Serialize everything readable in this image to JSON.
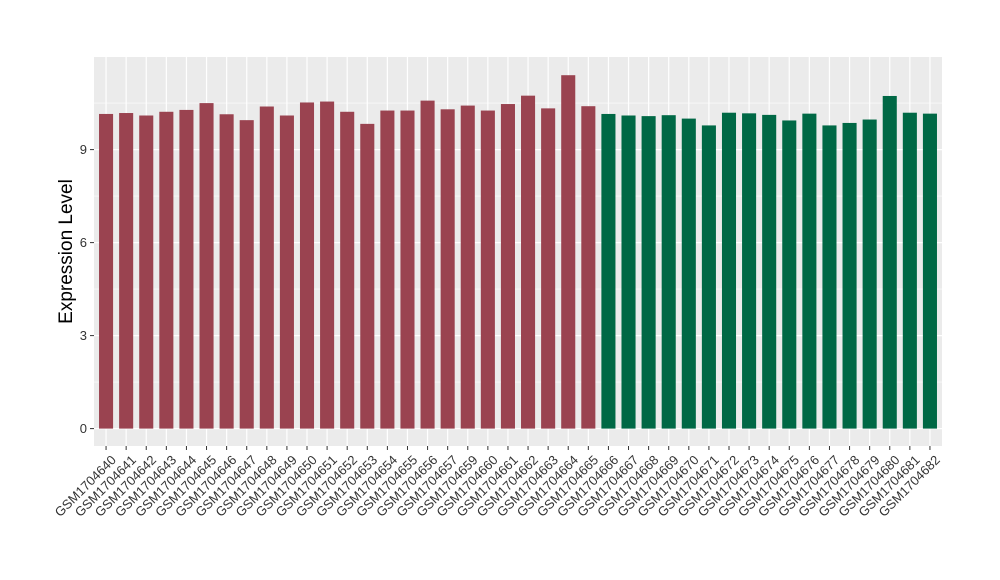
{
  "chart_data": {
    "type": "bar",
    "title": "",
    "xlabel": "",
    "ylabel": "Expression Level",
    "ylim": [
      0,
      12.2
    ],
    "yticks": [
      0,
      3,
      6,
      9
    ],
    "grid": true,
    "legend": "none",
    "colors": {
      "group1": "#9a4350",
      "group2": "#006845",
      "panel_bg": "#ebebeb",
      "grid": "#ffffff"
    },
    "categories": [
      "GSM1704640",
      "GSM1704641",
      "GSM1704642",
      "GSM1704643",
      "GSM1704644",
      "GSM1704645",
      "GSM1704646",
      "GSM1704647",
      "GSM1704648",
      "GSM1704649",
      "GSM1704650",
      "GSM1704651",
      "GSM1704652",
      "GSM1704653",
      "GSM1704654",
      "GSM1704655",
      "GSM1704656",
      "GSM1704657",
      "GSM1704659",
      "GSM1704660",
      "GSM1704661",
      "GSM1704662",
      "GSM1704663",
      "GSM1704664",
      "GSM1704665",
      "GSM1704666",
      "GSM1704667",
      "GSM1704668",
      "GSM1704669",
      "GSM1704670",
      "GSM1704671",
      "GSM1704672",
      "GSM1704673",
      "GSM1704674",
      "GSM1704675",
      "GSM1704676",
      "GSM1704677",
      "GSM1704678",
      "GSM1704679",
      "GSM1704680",
      "GSM1704681",
      "GSM1704682"
    ],
    "values": [
      10.15,
      10.18,
      10.1,
      10.22,
      10.28,
      10.5,
      10.14,
      9.95,
      10.39,
      10.1,
      10.52,
      10.55,
      10.22,
      9.83,
      10.26,
      10.26,
      10.58,
      10.3,
      10.42,
      10.26,
      10.47,
      10.74,
      10.33,
      11.4,
      10.4,
      10.15,
      10.1,
      10.08,
      10.11,
      10.0,
      9.78,
      10.19,
      10.17,
      10.12,
      9.94,
      10.16,
      9.78,
      9.86,
      9.97,
      10.73,
      10.19,
      10.16
    ],
    "groups": [
      1,
      1,
      1,
      1,
      1,
      1,
      1,
      1,
      1,
      1,
      1,
      1,
      1,
      1,
      1,
      1,
      1,
      1,
      1,
      1,
      1,
      1,
      1,
      1,
      1,
      2,
      2,
      2,
      2,
      2,
      2,
      2,
      2,
      2,
      2,
      2,
      2,
      2,
      2,
      2,
      2,
      2
    ]
  }
}
